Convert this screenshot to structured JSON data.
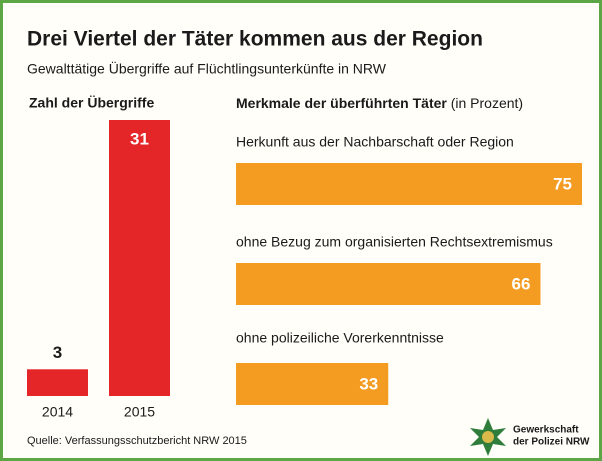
{
  "header": {
    "title": "Drei Viertel der Täter kommen aus der Region",
    "subtitle": "Gewalttätige Übergriffe auf Flüchtlingsunterkünfte in NRW"
  },
  "chart_data": [
    {
      "type": "bar",
      "title": "Zahl der Übergriffe",
      "categories": [
        "2014",
        "2015"
      ],
      "values": [
        3,
        31
      ],
      "color": "#e52629"
    },
    {
      "type": "barh",
      "title": "Merkmale der überführten Täter",
      "unit": "(in Prozent)",
      "categories": [
        "Herkunft aus der Nachbarschaft oder Region",
        "ohne Bezug zum organisierten Rechtsextremismus",
        "ohne polizeiliche Vorerkenntnisse"
      ],
      "values": [
        75,
        66,
        33
      ],
      "color": "#f39c21"
    }
  ],
  "source": "Quelle:  Verfassungsschutzbericht NRW 2015",
  "logo": {
    "line1": "Gewerkschaft",
    "line2": "der Polizei NRW"
  }
}
